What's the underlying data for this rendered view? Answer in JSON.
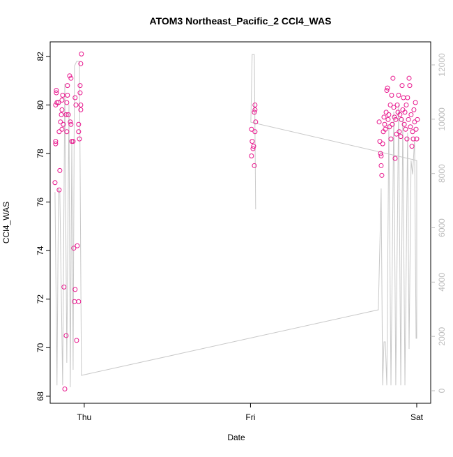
{
  "chart_data": {
    "type": "scatter",
    "title": "ATOM3 Northeast_Pacific_2 CCl4_WAS",
    "xlabel": "Date",
    "ylabel": "CCl4_WAS",
    "xlim": [
      -0.205,
      2.084
    ],
    "xticks": [
      {
        "value": 0,
        "label": "Thu"
      },
      {
        "value": 1,
        "label": "Fri"
      },
      {
        "value": 2,
        "label": "Sat"
      }
    ],
    "ylim": [
      67.71,
      82.6
    ],
    "yticks": [
      68,
      70,
      72,
      74,
      76,
      78,
      80,
      82
    ],
    "y2lim": [
      -462,
      12848
    ],
    "y2ticks": [
      0,
      2000,
      4000,
      6000,
      8000,
      10000,
      12000
    ],
    "grid": false,
    "series": [
      {
        "type": "scatter",
        "color": "#e8158c",
        "x": [
          -0.176,
          -0.172,
          -0.172,
          -0.168,
          -0.168,
          -0.164,
          -0.172,
          -0.155,
          -0.151,
          -0.147,
          -0.151,
          -0.143,
          -0.138,
          -0.134,
          -0.13,
          -0.134,
          -0.134,
          -0.126,
          -0.122,
          -0.117,
          -0.109,
          -0.109,
          -0.105,
          -0.101,
          -0.101,
          -0.105,
          -0.096,
          -0.088,
          -0.08,
          -0.084,
          -0.08,
          -0.075,
          -0.067,
          -0.063,
          -0.059,
          -0.055,
          -0.055,
          -0.05,
          -0.046,
          -0.042,
          -0.034,
          -0.034,
          -0.034,
          -0.029,
          -0.025,
          -0.025,
          -0.021,
          -0.021,
          -0.017,
          -0.021,
          1.006,
          1.01,
          1.015,
          1.006,
          1.023,
          1.019,
          1.027,
          1.027,
          1.023,
          1.031,
          1.027,
          1.774,
          1.778,
          1.782,
          1.786,
          1.79,
          1.786,
          1.795,
          1.799,
          1.803,
          1.807,
          1.811,
          1.816,
          1.82,
          1.824,
          1.828,
          1.832,
          1.836,
          1.841,
          1.845,
          1.849,
          1.853,
          1.857,
          1.862,
          1.866,
          1.87,
          1.874,
          1.878,
          1.883,
          1.887,
          1.891,
          1.895,
          1.899,
          1.904,
          1.908,
          1.912,
          1.916,
          1.92,
          1.925,
          1.929,
          1.933,
          1.937,
          1.941,
          1.945,
          1.95,
          1.954,
          1.958,
          1.962,
          1.966,
          1.971,
          1.975,
          1.979,
          1.983,
          1.987,
          1.992,
          1.996,
          2.0,
          2.004
        ],
        "values": [
          76.8,
          78.5,
          78.4,
          80.6,
          80.5,
          80.1,
          80.0,
          80.1,
          78.9,
          77.3,
          76.5,
          79.3,
          79.6,
          80.2,
          80.4,
          79.8,
          79.0,
          79.2,
          72.5,
          68.3,
          70.5,
          79.6,
          80.1,
          80.4,
          80.8,
          78.9,
          79.6,
          81.2,
          81.1,
          79.3,
          79.2,
          78.5,
          78.5,
          74.1,
          71.9,
          72.4,
          80.3,
          80.0,
          70.3,
          74.2,
          71.9,
          79.2,
          78.9,
          78.6,
          80.8,
          80.5,
          80.0,
          79.8,
          82.1,
          81.7,
          79.0,
          78.5,
          78.2,
          77.9,
          77.5,
          78.3,
          80.0,
          79.8,
          79.7,
          79.3,
          78.9,
          79.3,
          78.5,
          78.0,
          77.5,
          77.1,
          77.9,
          78.4,
          78.9,
          79.5,
          79.2,
          79.0,
          79.7,
          80.6,
          80.7,
          79.4,
          79.6,
          79.1,
          80.0,
          78.6,
          80.4,
          79.2,
          81.1,
          79.9,
          79.5,
          77.8,
          79.4,
          78.8,
          80.0,
          79.7,
          80.4,
          78.9,
          79.6,
          78.7,
          79.4,
          80.8,
          79.8,
          80.3,
          79.2,
          79.7,
          79.0,
          80.0,
          78.6,
          80.3,
          79.4,
          81.1,
          80.8,
          79.1,
          79.6,
          78.3,
          78.9,
          78.6,
          79.8,
          79.3,
          80.1,
          79.0,
          78.6,
          79.4
        ]
      },
      {
        "type": "line",
        "axis": "y2",
        "color": "#c8c8c8",
        "x": [
          -0.176,
          -0.164,
          -0.155,
          -0.147,
          -0.13,
          -0.117,
          -0.105,
          -0.092,
          -0.084,
          -0.075,
          -0.067,
          -0.059,
          -0.046,
          -0.029,
          -0.017,
          1.769,
          1.786,
          1.795,
          1.803,
          1.811,
          1.82,
          1.832,
          1.845,
          1.862,
          1.874,
          1.891,
          1.904,
          1.916,
          1.929,
          1.945,
          1.954,
          1.966,
          1.975,
          1.987,
          1.996,
          2.0,
          2.0,
          1.002,
          1.01,
          1.023,
          1.031
        ],
        "values": [
          7320,
          200,
          7450,
          7320,
          200,
          11300,
          1030,
          10540,
          130,
          9250,
          770,
          11950,
          12130,
          12130,
          565,
          2980,
          7450,
          200,
          1800,
          1800,
          200,
          9760,
          200,
          10280,
          200,
          10540,
          200,
          10020,
          200,
          9500,
          1540,
          8480,
          7970,
          9250,
          1930,
          1930,
          8480,
          9890,
          12380,
          12380,
          6680
        ]
      }
    ]
  }
}
